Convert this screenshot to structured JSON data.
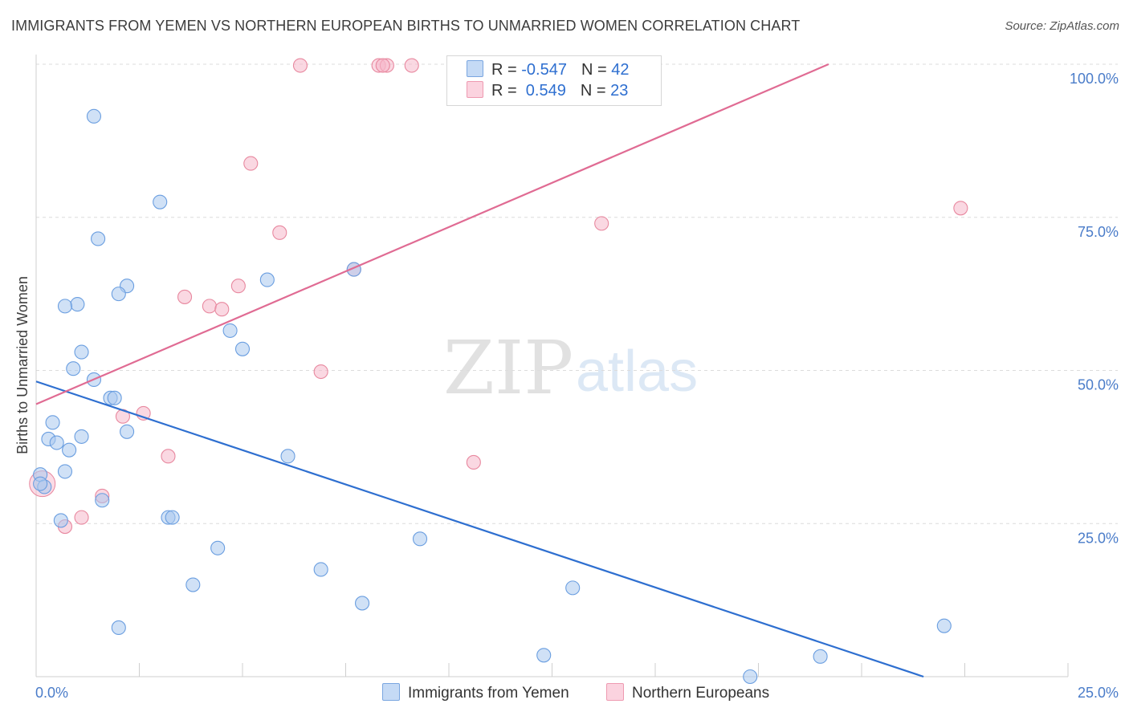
{
  "header": {
    "title": "IMMIGRANTS FROM YEMEN VS NORTHERN EUROPEAN BIRTHS TO UNMARRIED WOMEN CORRELATION CHART",
    "source": "Source: ZipAtlas.com"
  },
  "watermark": {
    "zip": "ZIP",
    "atlas": "atlas"
  },
  "legend": {
    "rows": [
      {
        "r_label": "R = ",
        "r_value": "-0.547",
        "n_label": "N = ",
        "n_value": "42",
        "color": "#a9c8ee"
      },
      {
        "r_label": "R = ",
        "r_value": " 0.549",
        "n_label": "N = ",
        "n_value": "23",
        "color": "#f5b8cb"
      }
    ]
  },
  "bottom_legend": {
    "series1": "Immigrants from Yemen",
    "series2": "Northern Europeans"
  },
  "colors": {
    "blue_fill": "#a9c8ee",
    "blue_stroke": "#6a9ee0",
    "blue_line": "#2e6fd0",
    "pink_fill": "#f5b8cb",
    "pink_stroke": "#e8889f",
    "pink_line": "#e06b93",
    "grid": "#dcdcdc",
    "tick_text": "#4a7cc9"
  },
  "chart_data": {
    "type": "scatter",
    "title": "IMMIGRANTS FROM YEMEN VS NORTHERN EUROPEAN BIRTHS TO UNMARRIED WOMEN CORRELATION CHART",
    "xlabel": "",
    "ylabel": "Births to Unmarried Women",
    "xlim": [
      0,
      25
    ],
    "ylim": [
      0,
      100
    ],
    "x_ticks": [
      "0.0%",
      "25.0%"
    ],
    "y_ticks": [
      "25.0%",
      "50.0%",
      "75.0%",
      "100.0%"
    ],
    "y_tick_values": [
      25,
      50,
      75,
      100
    ],
    "grid": true,
    "legend_position": "top-center",
    "series": [
      {
        "name": "Immigrants from Yemen",
        "r": -0.547,
        "n": 42,
        "points": [
          [
            1.4,
            91.5
          ],
          [
            3.0,
            77.5
          ],
          [
            1.5,
            71.5
          ],
          [
            2.2,
            63.8
          ],
          [
            2.0,
            62.5
          ],
          [
            1.0,
            60.8
          ],
          [
            0.7,
            60.5
          ],
          [
            5.6,
            64.8
          ],
          [
            7.7,
            66.5
          ],
          [
            4.7,
            56.5
          ],
          [
            5.0,
            53.5
          ],
          [
            1.1,
            53.0
          ],
          [
            0.9,
            50.3
          ],
          [
            1.4,
            48.5
          ],
          [
            1.8,
            45.5
          ],
          [
            1.9,
            45.5
          ],
          [
            0.4,
            41.5
          ],
          [
            2.2,
            40.0
          ],
          [
            1.1,
            39.2
          ],
          [
            0.3,
            38.8
          ],
          [
            0.5,
            38.2
          ],
          [
            0.8,
            37.0
          ],
          [
            6.1,
            36.0
          ],
          [
            0.7,
            33.5
          ],
          [
            0.1,
            33.0
          ],
          [
            0.2,
            31.0
          ],
          [
            1.6,
            28.8
          ],
          [
            0.6,
            25.5
          ],
          [
            3.2,
            26.0
          ],
          [
            3.3,
            26.0
          ],
          [
            4.4,
            21.0
          ],
          [
            9.3,
            22.5
          ],
          [
            6.9,
            17.5
          ],
          [
            3.8,
            15.0
          ],
          [
            13.0,
            14.5
          ],
          [
            7.9,
            12.0
          ],
          [
            2.0,
            8.0
          ],
          [
            22.0,
            8.3
          ],
          [
            12.3,
            3.5
          ],
          [
            19.0,
            3.3
          ],
          [
            17.3,
            0.0
          ],
          [
            0.1,
            31.5
          ]
        ]
      },
      {
        "name": "Northern Europeans",
        "r": 0.549,
        "n": 23,
        "points": [
          [
            6.4,
            99.8
          ],
          [
            8.3,
            99.8
          ],
          [
            8.5,
            99.8
          ],
          [
            9.1,
            99.8
          ],
          [
            10.2,
            99.8
          ],
          [
            8.4,
            99.8
          ],
          [
            5.2,
            83.8
          ],
          [
            5.9,
            72.5
          ],
          [
            13.7,
            74.0
          ],
          [
            22.4,
            76.5
          ],
          [
            7.7,
            66.5
          ],
          [
            4.9,
            63.8
          ],
          [
            3.6,
            62.0
          ],
          [
            4.2,
            60.5
          ],
          [
            4.5,
            60.0
          ],
          [
            6.9,
            49.8
          ],
          [
            2.6,
            43.0
          ],
          [
            2.1,
            42.5
          ],
          [
            3.2,
            36.0
          ],
          [
            10.6,
            35.0
          ],
          [
            1.6,
            29.5
          ],
          [
            1.1,
            26.0
          ],
          [
            0.7,
            24.5
          ]
        ]
      }
    ],
    "trend_lines": [
      {
        "series": "Immigrants from Yemen",
        "x": [
          0,
          21.5
        ],
        "y": [
          48.2,
          0
        ]
      },
      {
        "series": "Northern Europeans",
        "x": [
          0,
          19.2
        ],
        "y": [
          44.5,
          100
        ]
      }
    ]
  }
}
